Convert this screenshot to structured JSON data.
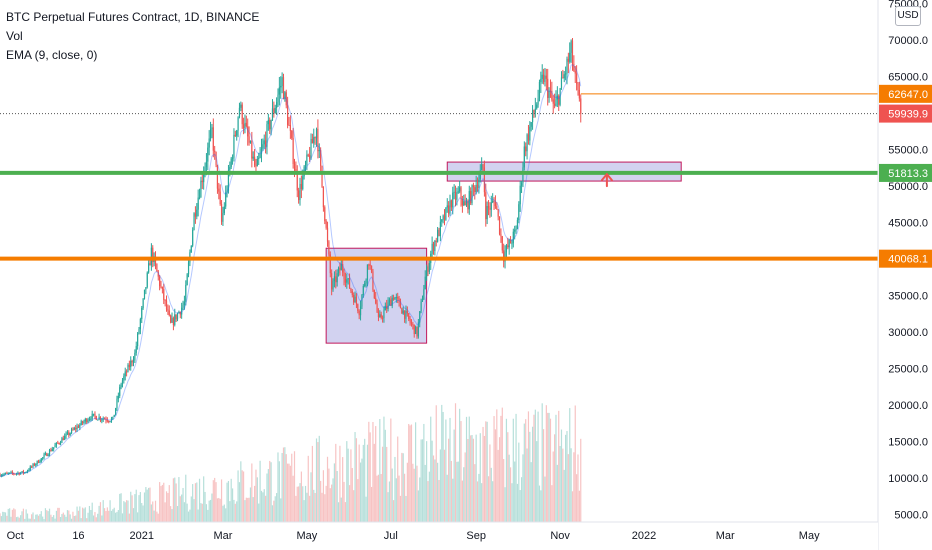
{
  "legend": {
    "title": "BTC Perpetual Futures Contract, 1D, BINANCE",
    "vol": "Vol",
    "ema": "EMA (9, close, 0)"
  },
  "currency_button": "USD",
  "colors": {
    "up": "#26a69a",
    "down": "#ef5350",
    "ema": "#2962ff",
    "green_line": "#4caf50",
    "orange_line": "#f57c00",
    "box_fill": "#b4b4e6",
    "box_border": "#c2185b",
    "arrow": "#ef5350"
  },
  "chart_data": {
    "type": "candlestick",
    "title": "BTC Perpetual Futures Contract, 1D, BINANCE",
    "y_scale": "linear",
    "ylim": [
      4000,
      75500
    ],
    "y_ticks": [
      5000,
      10000,
      15000,
      20000,
      25000,
      30000,
      35000,
      40000,
      45000,
      50000,
      55000,
      60000,
      65000,
      70000,
      75000
    ],
    "y_tick_labels": [
      "5000.0",
      "10000.0",
      "15000.0",
      "20000.0",
      "25000.0",
      "30000.0",
      "35000.0",
      "40000.0",
      "45000.0",
      "50000.0",
      "55000.0",
      "60000.0",
      "65000.0",
      "70000.0",
      "75000.0"
    ],
    "x_range": [
      "2020-09-20",
      "2022-06-20"
    ],
    "x_ticks": [
      {
        "date": "2020-10-01",
        "label": "Oct"
      },
      {
        "date": "2020-11-16",
        "label": "16"
      },
      {
        "date": "2021-01-01",
        "label": "2021"
      },
      {
        "date": "2021-03-01",
        "label": "Mar"
      },
      {
        "date": "2021-05-01",
        "label": "May"
      },
      {
        "date": "2021-07-01",
        "label": "Jul"
      },
      {
        "date": "2021-09-01",
        "label": "Sep"
      },
      {
        "date": "2021-11-01",
        "label": "Nov"
      },
      {
        "date": "2022-01-01",
        "label": "2022"
      },
      {
        "date": "2022-03-01",
        "label": "Mar"
      },
      {
        "date": "2022-05-01",
        "label": "May"
      }
    ],
    "price_path": [
      [
        "2020-09-20",
        10500
      ],
      [
        "2020-10-08",
        10800
      ],
      [
        "2020-10-21",
        12800
      ],
      [
        "2020-11-05",
        15500
      ],
      [
        "2020-11-25",
        18500
      ],
      [
        "2020-12-11",
        18000
      ],
      [
        "2020-12-17",
        23000
      ],
      [
        "2020-12-27",
        27000
      ],
      [
        "2021-01-08",
        41000
      ],
      [
        "2021-01-22",
        31000
      ],
      [
        "2021-02-01",
        34000
      ],
      [
        "2021-02-08",
        46000
      ],
      [
        "2021-02-21",
        57500
      ],
      [
        "2021-02-28",
        45000
      ],
      [
        "2021-03-13",
        61000
      ],
      [
        "2021-03-25",
        52000
      ],
      [
        "2021-04-13",
        64500
      ],
      [
        "2021-04-25",
        49000
      ],
      [
        "2021-05-08",
        58000
      ],
      [
        "2021-05-12",
        50000
      ],
      [
        "2021-05-19",
        36000
      ],
      [
        "2021-05-26",
        39000
      ],
      [
        "2021-06-08",
        33000
      ],
      [
        "2021-06-15",
        40000
      ],
      [
        "2021-06-22",
        31500
      ],
      [
        "2021-07-03",
        35000
      ],
      [
        "2021-07-20",
        29800
      ],
      [
        "2021-07-26",
        37500
      ],
      [
        "2021-07-31",
        41500
      ],
      [
        "2021-08-14",
        48000
      ],
      [
        "2021-08-20",
        49000
      ],
      [
        "2021-08-24",
        47000
      ],
      [
        "2021-09-06",
        52500
      ],
      [
        "2021-09-08",
        46500
      ],
      [
        "2021-09-15",
        48000
      ],
      [
        "2021-09-21",
        40500
      ],
      [
        "2021-09-30",
        43800
      ],
      [
        "2021-10-06",
        55000
      ],
      [
        "2021-10-15",
        61500
      ],
      [
        "2021-10-20",
        65000
      ],
      [
        "2021-10-28",
        60500
      ],
      [
        "2021-11-09",
        68500
      ],
      [
        "2021-11-12",
        64300
      ],
      [
        "2021-11-16",
        59939.9
      ]
    ],
    "volume_ylim": [
      0,
      80000
    ],
    "last_price": 59939.9,
    "price_labels": [
      {
        "value": "62647.0",
        "color": "#f57c00"
      },
      {
        "value": "59939.9",
        "color": "#ef5350"
      },
      {
        "value": "51813.3",
        "color": "#4caf50"
      },
      {
        "value": "40068.1",
        "color": "#f57c00"
      }
    ],
    "annotations": {
      "horizontal_lines": [
        {
          "price": 51813.3,
          "color": "#4caf50"
        },
        {
          "price": 40068.1,
          "color": "#f57c00"
        }
      ],
      "horizontal_ray": {
        "price": 62647.0,
        "from": "2021-11-16",
        "color": "#f57c00"
      },
      "boxes": [
        {
          "from": "2021-05-15",
          "to": "2021-07-27",
          "top": 41500,
          "bottom": 28500
        },
        {
          "from": "2021-08-11",
          "to": "2022-01-28",
          "top": 53300,
          "bottom": 50700
        }
      ],
      "arrow": {
        "date": "2021-12-05",
        "price": 50000,
        "direction": "up"
      }
    }
  }
}
